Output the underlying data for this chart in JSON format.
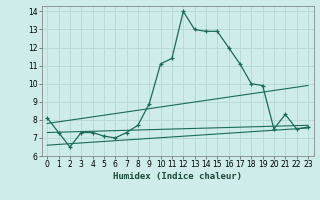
{
  "xlabel": "Humidex (Indice chaleur)",
  "bg_color": "#ceecea",
  "line_color": "#1a6b5a",
  "grid_color": "#b8dbd8",
  "xlim": [
    -0.5,
    23.5
  ],
  "ylim": [
    6,
    14.3
  ],
  "yticks": [
    6,
    7,
    8,
    9,
    10,
    11,
    12,
    13,
    14
  ],
  "xticks": [
    0,
    1,
    2,
    3,
    4,
    5,
    6,
    7,
    8,
    9,
    10,
    11,
    12,
    13,
    14,
    15,
    16,
    17,
    18,
    19,
    20,
    21,
    22,
    23
  ],
  "series1_x": [
    0,
    1,
    2,
    3,
    4,
    5,
    6,
    7,
    8,
    9,
    10,
    11,
    12,
    13,
    14,
    15,
    16,
    17,
    18,
    19,
    20,
    21,
    22,
    23
  ],
  "series1_y": [
    8.1,
    7.3,
    6.5,
    7.3,
    7.3,
    7.1,
    7.0,
    7.3,
    7.7,
    8.9,
    11.1,
    11.4,
    14.0,
    13.0,
    12.9,
    12.9,
    12.0,
    11.1,
    10.0,
    9.9,
    7.5,
    8.3,
    7.5,
    7.6
  ],
  "series2_x": [
    0,
    23
  ],
  "series2_y": [
    7.8,
    9.9
  ],
  "series3_x": [
    0,
    23
  ],
  "series3_y": [
    7.3,
    7.7
  ],
  "series4_x": [
    0,
    23
  ],
  "series4_y": [
    6.6,
    7.55
  ]
}
